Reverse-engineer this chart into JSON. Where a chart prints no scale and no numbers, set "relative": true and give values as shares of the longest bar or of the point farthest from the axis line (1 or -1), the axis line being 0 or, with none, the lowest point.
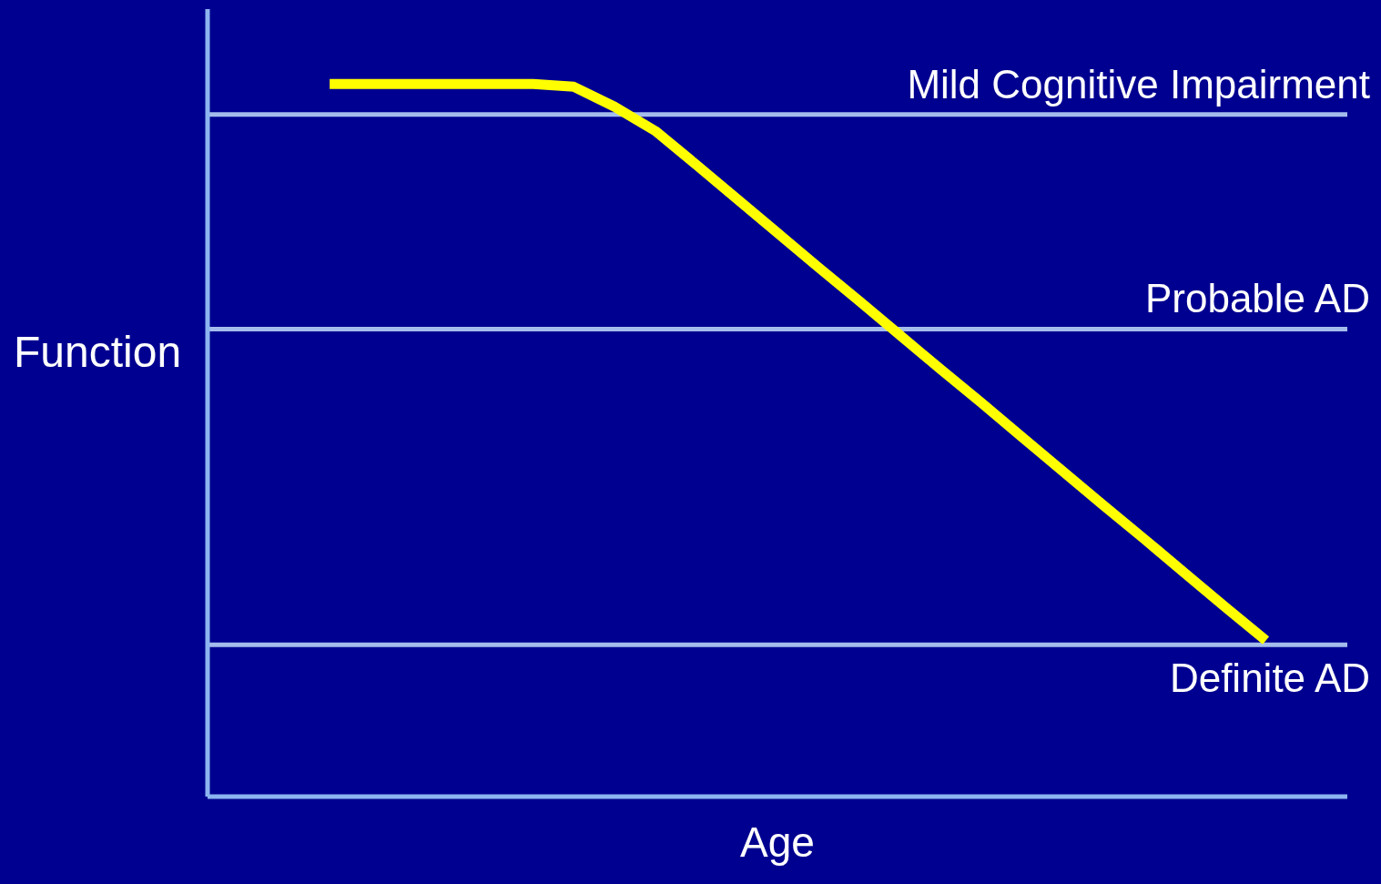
{
  "chart_data": {
    "type": "line",
    "relative": true,
    "xlabel": "Age",
    "ylabel": "Function",
    "categories": [
      null,
      null,
      null,
      null,
      null,
      null,
      null,
      null,
      null,
      null,
      null,
      null,
      null,
      null,
      null,
      null,
      null,
      null,
      null,
      null,
      null,
      null,
      null,
      null,
      null,
      null,
      null,
      null,
      null
    ],
    "series": [
      {
        "color": "#ffff00",
        "values": [
          null,
          null,
          null,
          1,
          1,
          1,
          1,
          1,
          1,
          0.996,
          0.968,
          0.934,
          0.887,
          0.839,
          0.791,
          0.743,
          0.696,
          0.648,
          0.6,
          0.553,
          0.505,
          0.457,
          0.409,
          0.362,
          0.314,
          0.266,
          0.219,
          null,
          null
        ]
      }
    ],
    "ref_lines": [
      {
        "axis": "y",
        "value": 0.957,
        "label": "Mild Cognitive Impairment",
        "color": "#a4bcec"
      },
      {
        "axis": "y",
        "value": 0.656,
        "label": "Probable AD",
        "color": "#a4bcec"
      },
      {
        "axis": "y",
        "value": 0.213,
        "label": "Definite AD",
        "color": "#a4bcec"
      }
    ],
    "grid": false,
    "legend": false,
    "marker": "none",
    "line_style": "solid"
  }
}
